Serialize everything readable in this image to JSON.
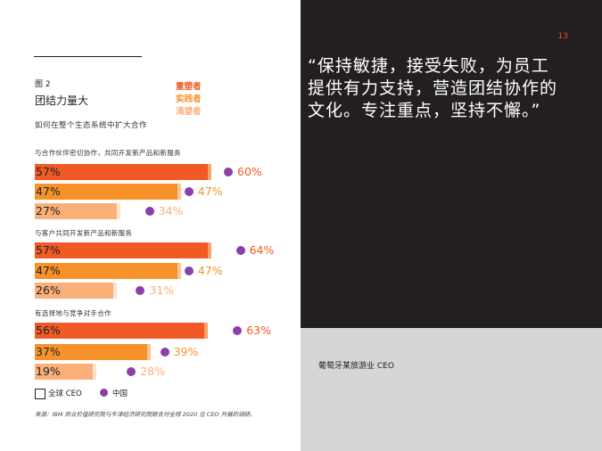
{
  "figure": {
    "number": "图 2",
    "title": "团结力量大",
    "subtitle": "如何在整个生态系统中扩大合作",
    "tiers": [
      {
        "label": "重塑者",
        "color": "#f15a24"
      },
      {
        "label": "实践者",
        "color": "#f7922a"
      },
      {
        "label": "渴望者",
        "color": "#fbb07a"
      }
    ]
  },
  "chart_data": {
    "type": "bar",
    "orientation": "horizontal",
    "xlim": [
      0,
      100
    ],
    "groups": [
      {
        "label": "与合作伙伴密切协作，共同开发新产品和新服务",
        "bars": [
          {
            "tier": "重塑者",
            "global_ceo": 57,
            "china": 60,
            "global_label": "57%",
            "china_label": "60%"
          },
          {
            "tier": "实践者",
            "global_ceo": 47,
            "china": 47,
            "global_label": "47%",
            "china_label": "47%"
          },
          {
            "tier": "渴望者",
            "global_ceo": 27,
            "china": 34,
            "global_label": "27%",
            "china_label": "34%"
          }
        ]
      },
      {
        "label": "与客户共同开发新产品和新服务",
        "bars": [
          {
            "tier": "重塑者",
            "global_ceo": 57,
            "china": 64,
            "global_label": "57%",
            "china_label": "64%"
          },
          {
            "tier": "实践者",
            "global_ceo": 47,
            "china": 47,
            "global_label": "47%",
            "china_label": "47%"
          },
          {
            "tier": "渴望者",
            "global_ceo": 26,
            "china": 31,
            "global_label": "26%",
            "china_label": "31%"
          }
        ]
      },
      {
        "label": "有选择地与竞争对手合作",
        "bars": [
          {
            "tier": "重塑者",
            "global_ceo": 56,
            "china": 63,
            "global_label": "56%",
            "china_label": "63%"
          },
          {
            "tier": "实践者",
            "global_ceo": 37,
            "china": 39,
            "global_label": "37%",
            "china_label": "39%"
          },
          {
            "tier": "渴望者",
            "global_ceo": 19,
            "china": 28,
            "global_label": "19%",
            "china_label": "28%"
          }
        ]
      }
    ],
    "legend": {
      "global": "全球 CEO",
      "china": "中国"
    },
    "colors": {
      "china_dot": "#8b3fa8"
    }
  },
  "source": "来源：IBM 商业价值研究院与牛津经济研究院联合对全球 2020 位 CEO 开展的调研。",
  "page_number": "13",
  "quote": "“保持敏捷，接受失败，为员工提供有力支持，营造团结协作的文化。专注重点，坚持不懈。”",
  "attribution": "葡萄牙某旅游业 CEO"
}
